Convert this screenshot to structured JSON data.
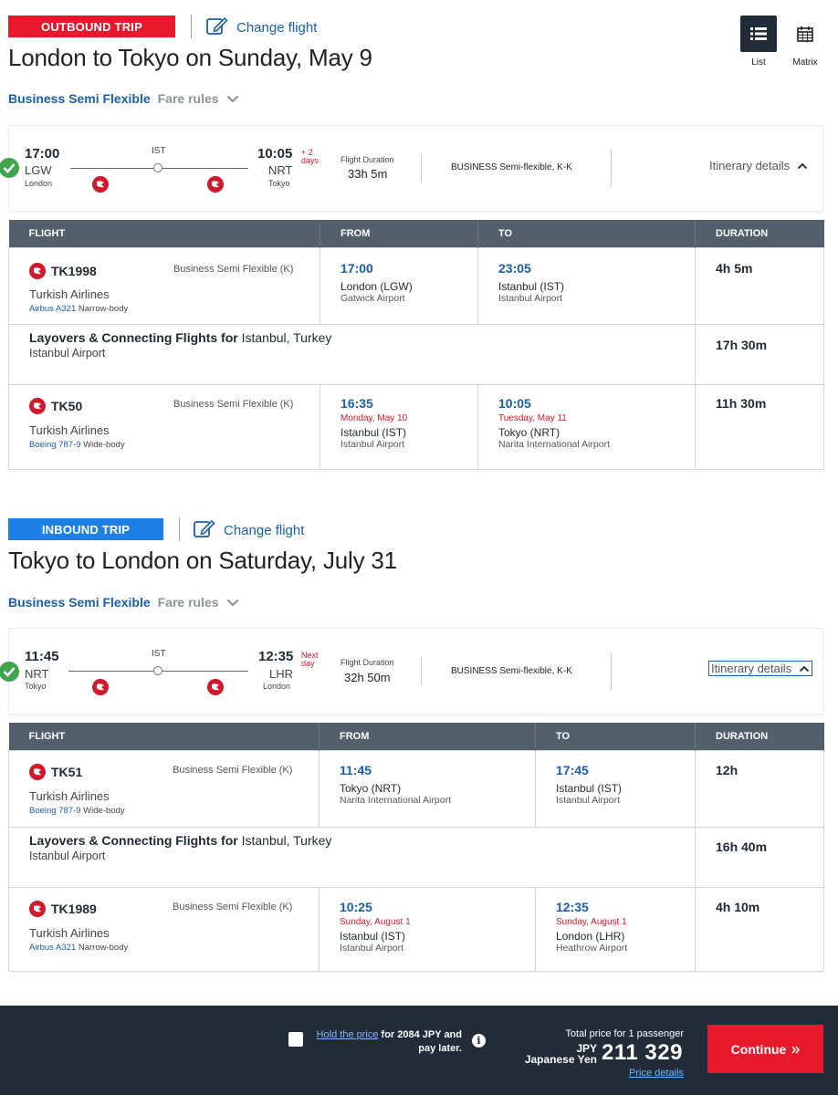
{
  "view": {
    "list_label": "List",
    "matrix_label": "Matrix"
  },
  "colors": {
    "outbound": "#e8192c",
    "inbound": "#1e7fe6",
    "link": "#1a5fa8",
    "alert": "#d0192b"
  },
  "outbound": {
    "badge": "OUTBOUND TRIP",
    "change_label": "Change flight",
    "title": "London to Tokyo on Sunday, May 9",
    "fare_name": "Business Semi Flexible",
    "fare_rules": "Fare rules",
    "summary": {
      "dep_time": "17:00",
      "dep_code": "LGW",
      "dep_city": "London",
      "via": "IST",
      "arr_time": "10:05",
      "arr_code": "NRT",
      "arr_city": "Tokyo",
      "day_offset_1": "+ 2",
      "day_offset_2": "days",
      "duration_label": "Flight Duration",
      "duration": "33h 5m",
      "cabin": "BUSINESS Semi-flexible, K-K",
      "itinerary": "Itinerary details"
    },
    "headers": [
      "FLIGHT",
      "FROM",
      "TO",
      "DURATION"
    ],
    "segments": [
      {
        "flight": "TK1998",
        "class": "Business Semi Flexible (K)",
        "airline": "Turkish Airlines",
        "aircraft_model": "Airbus A321",
        "aircraft_type": "Narrow-body",
        "dep_time": "17:00",
        "dep_date": "",
        "dep_city": "London (LGW)",
        "dep_airport": "Gatwick Airport",
        "arr_time": "23:05",
        "arr_date": "",
        "arr_city": "Istanbul (IST)",
        "arr_airport": "Istanbul Airport",
        "duration": "4h 5m"
      },
      {
        "flight": "TK50",
        "class": "Business Semi Flexible (K)",
        "airline": "Turkish Airlines",
        "aircraft_model": "Boeing 787-9",
        "aircraft_type": "Wide-body",
        "dep_time": "16:35",
        "dep_date": "Monday, May 10",
        "dep_city": "Istanbul (IST)",
        "dep_airport": "Istanbul Airport",
        "arr_time": "10:05",
        "arr_date": "Tuesday, May 11",
        "arr_city": "Tokyo (NRT)",
        "arr_airport": "Narita International Airport",
        "duration": "11h 30m"
      }
    ],
    "layover": {
      "bold": "Layovers & Connecting Flights for",
      "place": "Istanbul, Turkey",
      "airport": "Istanbul Airport",
      "duration": "17h 30m"
    }
  },
  "inbound": {
    "badge": "INBOUND TRIP",
    "change_label": "Change flight",
    "title": "Tokyo to London on Saturday, July 31",
    "fare_name": "Business Semi Flexible",
    "fare_rules": "Fare rules",
    "summary": {
      "dep_time": "11:45",
      "dep_code": "NRT",
      "dep_city": "Tokyo",
      "via": "IST",
      "arr_time": "12:35",
      "arr_code": "LHR",
      "arr_city": "London",
      "day_offset_1": "Next",
      "day_offset_2": "day",
      "duration_label": "Flight Duration",
      "duration": "32h 50m",
      "cabin": "BUSINESS Semi-flexible, K-K",
      "itinerary": "Itinerary details"
    },
    "headers": [
      "FLIGHT",
      "FROM",
      "TO",
      "DURATION"
    ],
    "segments": [
      {
        "flight": "TK51",
        "class": "Business Semi Flexible (K)",
        "airline": "Turkish Airlines",
        "aircraft_model": "Boeing 787-9",
        "aircraft_type": "Wide-body",
        "dep_time": "11:45",
        "dep_date": "",
        "dep_city": "Tokyo (NRT)",
        "dep_airport": "Narita International Airport",
        "arr_time": "17:45",
        "arr_date": "",
        "arr_city": "Istanbul (IST)",
        "arr_airport": "Istanbul Airport",
        "duration": "12h"
      },
      {
        "flight": "TK1989",
        "class": "Business Semi Flexible (K)",
        "airline": "Turkish Airlines",
        "aircraft_model": "Airbus A321",
        "aircraft_type": "Narrow-body",
        "dep_time": "10:25",
        "dep_date": "Sunday, August 1",
        "dep_city": "Istanbul (IST)",
        "dep_airport": "Istanbul Airport",
        "arr_time": "12:35",
        "arr_date": "Sunday, August 1",
        "arr_city": "London (LHR)",
        "arr_airport": "Heathrow Airport",
        "duration": "4h 10m"
      }
    ],
    "layover": {
      "bold": "Layovers & Connecting Flights for",
      "place": "Istanbul, Turkey",
      "airport": "Istanbul Airport",
      "duration": "16h 40m"
    }
  },
  "footer": {
    "hold_link": "Hold the price",
    "hold_text": "for 2084 JPY and",
    "hold_text2": "pay later.",
    "total_label": "Total price for 1 passenger",
    "currency_code": "JPY",
    "currency_name": "Japanese Yen",
    "amount": "211 329",
    "price_details": "Price details",
    "continue_label": "Continue"
  }
}
